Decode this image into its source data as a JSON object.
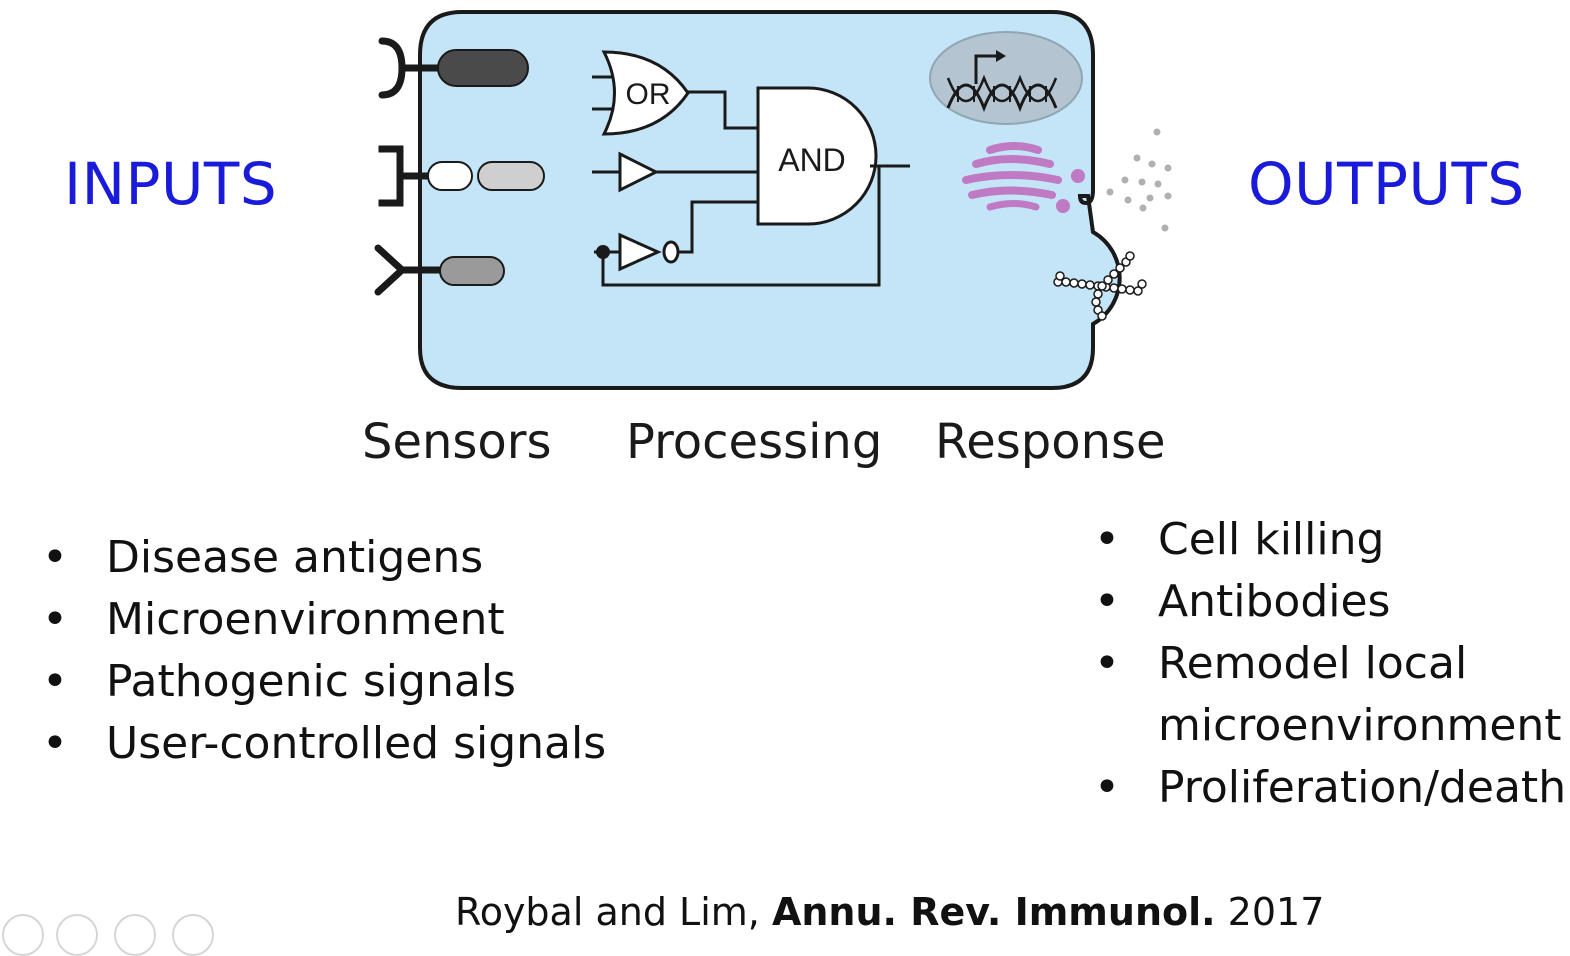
{
  "inputs_title": "INPUTS",
  "outputs_title": "OUTPUTS",
  "stages": {
    "sensors": "Sensors",
    "processing": "Processing",
    "response": "Response"
  },
  "gates": {
    "or": "OR",
    "and": "AND"
  },
  "inputs": [
    "Disease antigens",
    "Microenvironment",
    "Pathogenic signals",
    "User-controlled signals"
  ],
  "outputs": [
    "Cell killing",
    "Antibodies",
    "Remodel local microenvironment",
    "Proliferation/death"
  ],
  "citation": {
    "authors": "Roybal and Lim,",
    "journal": "Annu. Rev. Immunol.",
    "year": "2017"
  },
  "colors": {
    "cell_fill": "#c4e4f7",
    "title_blue": "#1a1adb",
    "golgi": "#c07ac4"
  },
  "icons": [
    "receptor-icon",
    "or-gate-icon",
    "and-gate-icon",
    "buffer-gate-icon",
    "not-gate-icon",
    "dna-icon",
    "golgi-icon",
    "secreted-particles-icon",
    "antibody-icon"
  ]
}
